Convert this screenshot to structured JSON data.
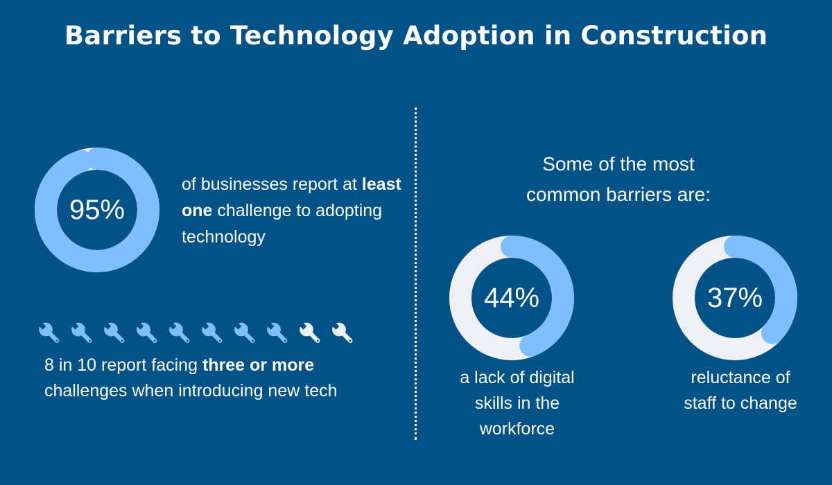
{
  "title": "Barriers to Technology Adoption in Construction",
  "colors": {
    "background": "#02528a",
    "accent": "#80bfff",
    "track": "#eef0f4",
    "text": "#ffffff"
  },
  "left": {
    "stat_value": "95%",
    "stat_text_before": "of businesses report at",
    "stat_text_bold": "least one",
    "stat_text_after": "challenge to adopting technology",
    "wrench_icon": "wrench-icon",
    "wrench_text_before": "8 in 10 report facing",
    "wrench_text_bold": "three or more",
    "wrench_text_after": "challenges when introducing new tech"
  },
  "right": {
    "heading": "Some of the most common barriers are:",
    "barrier1_value": "44%",
    "barrier1_caption": "a lack of digital skills in the workforce",
    "barrier2_value": "37%",
    "barrier2_caption": "reluctance of staff to change"
  },
  "chart_data": [
    {
      "type": "pie",
      "value_label": "95%",
      "values": [
        95,
        5
      ],
      "categories": [
        "",
        ""
      ],
      "caption": "of businesses report at least one challenge to adopting technology"
    },
    {
      "type": "table",
      "subtype": "pictogram",
      "icon": "wrench-icon",
      "values": [
        8,
        2
      ],
      "total": 10,
      "caption": "8 in 10 report facing three or more challenges when introducing new tech"
    },
    {
      "type": "pie",
      "value_label": "44%",
      "values": [
        44,
        56
      ],
      "categories": [
        "",
        ""
      ],
      "caption": "a lack of digital skills in the workforce"
    },
    {
      "type": "pie",
      "value_label": "37%",
      "values": [
        37,
        63
      ],
      "categories": [
        "",
        ""
      ],
      "caption": "reluctance of staff to change"
    }
  ]
}
